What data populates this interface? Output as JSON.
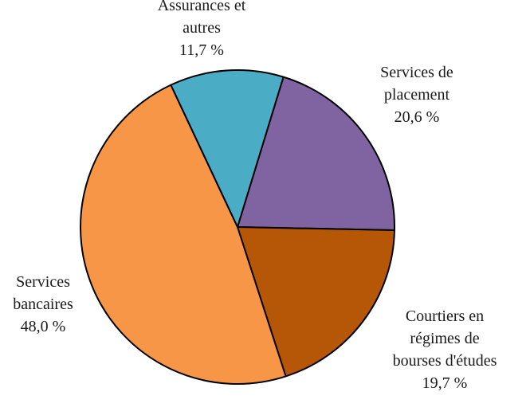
{
  "chart_data": {
    "type": "pie",
    "title": "",
    "start_angle_deg": 73,
    "direction": "clockwise",
    "legend": "none",
    "slices": [
      {
        "name": "Services de placement",
        "label_lines": [
          "Services de",
          "placement"
        ],
        "value": 20.6,
        "value_label": "20,6 %",
        "color": "#8064a2"
      },
      {
        "name": "Courtiers en régimes de bourses d'études",
        "label_lines": [
          "Courtiers en",
          "régimes de",
          "bourses d'études"
        ],
        "value": 19.7,
        "value_label": "19,7 %",
        "color": "#b65708"
      },
      {
        "name": "Services bancaires",
        "label_lines": [
          "Services",
          "bancaires"
        ],
        "value": 48.0,
        "value_label": "48,0 %",
        "color": "#f79646"
      },
      {
        "name": "Assurances et autres",
        "label_lines": [
          "Assurances et",
          "autres"
        ],
        "value": 11.7,
        "value_label": "11,7 %",
        "color": "#4bacc6"
      }
    ]
  }
}
